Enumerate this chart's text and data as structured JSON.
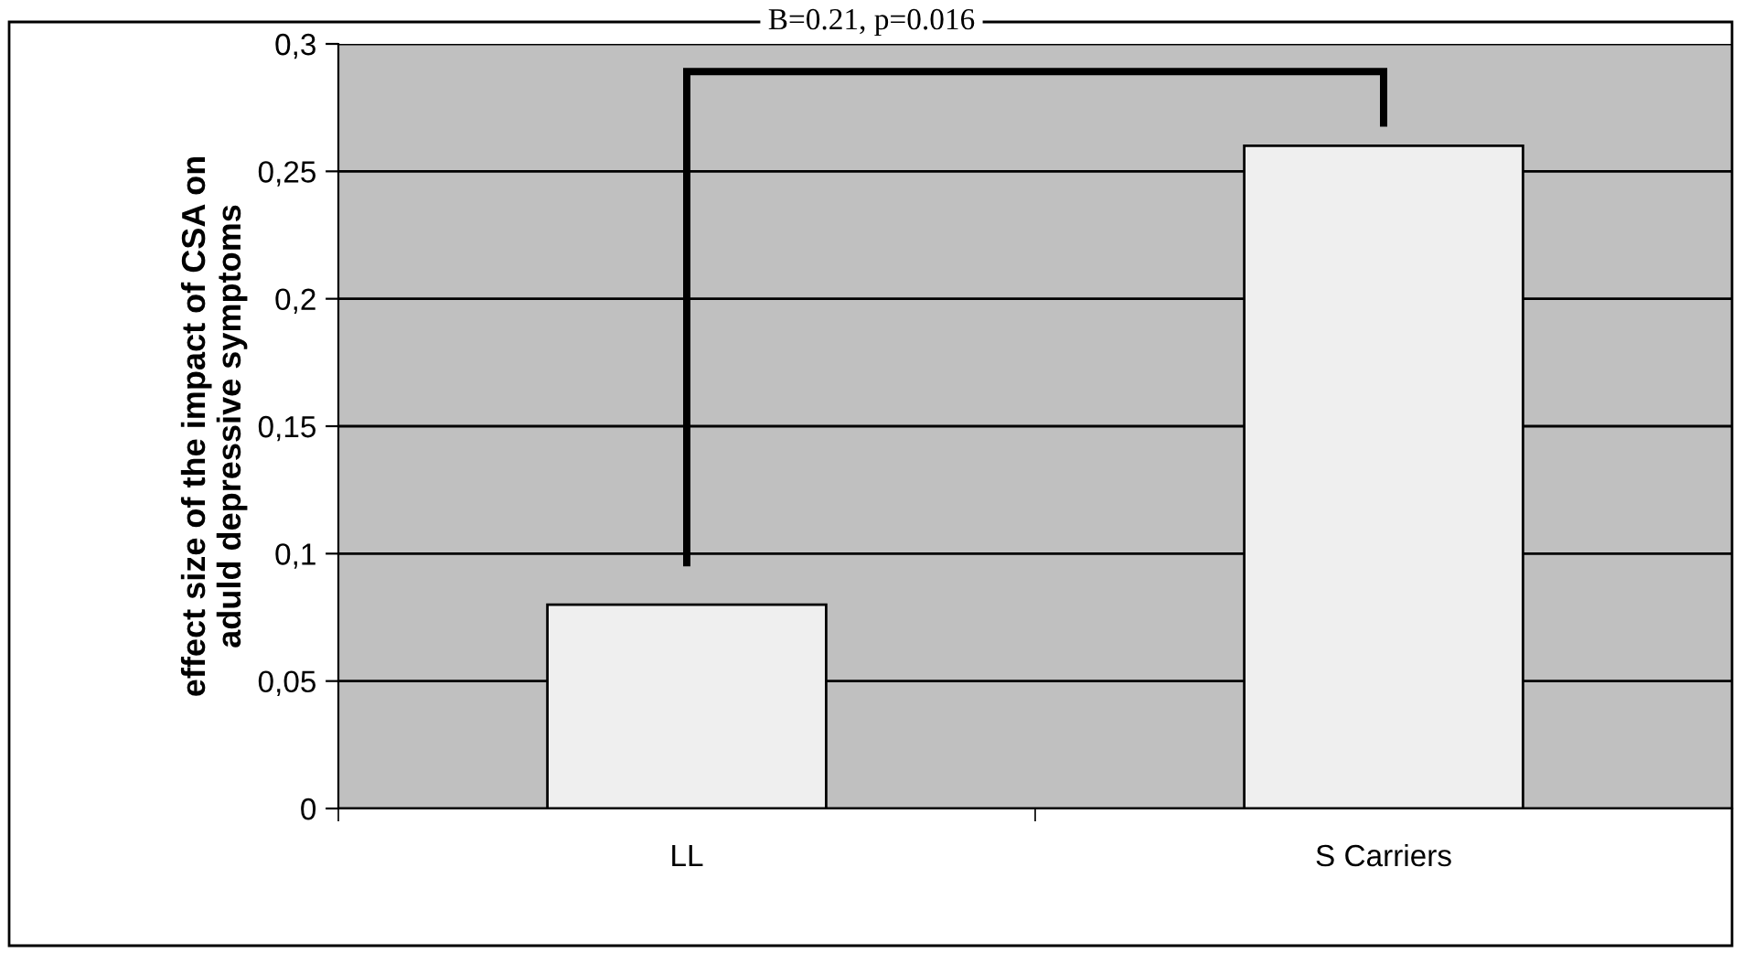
{
  "chart_data": {
    "type": "bar",
    "ylabel": "effect size of the impact of CSA on\naduld depressive symptoms",
    "categories": [
      "LL",
      "S Carriers"
    ],
    "values": [
      0.08,
      0.26
    ],
    "color": "#efefef",
    "ylim": [
      0,
      0.3
    ],
    "yticks": [
      {
        "value": 0,
        "label": "0"
      },
      {
        "value": 0.05,
        "label": "0,05"
      },
      {
        "value": 0.1,
        "label": "0,1"
      },
      {
        "value": 0.15,
        "label": "0,15"
      },
      {
        "value": 0.2,
        "label": "0,2"
      },
      {
        "value": 0.25,
        "label": "0,25"
      },
      {
        "value": 0.3,
        "label": "0,3"
      }
    ],
    "grid": "y",
    "annotations": [
      "B=0.21, p=0.016"
    ]
  }
}
